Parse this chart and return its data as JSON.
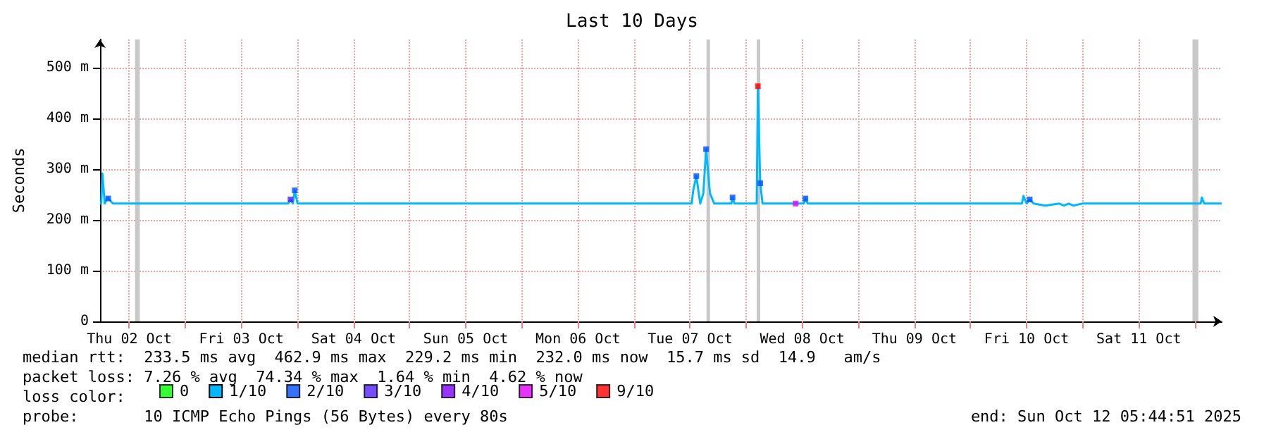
{
  "chart_data": {
    "type": "line",
    "title": "Last 10 Days",
    "ylabel": "Seconds",
    "legend_title": "loss color:",
    "xlim": [
      "2025-10-02T05:44:51",
      "2025-10-12T05:44:51"
    ],
    "ylim": [
      0,
      555
    ],
    "yticks": [
      0,
      {
        "value": 100,
        "label": "100 m"
      },
      {
        "value": 200,
        "label": "200 m"
      },
      {
        "value": 300,
        "label": "300 m"
      },
      {
        "value": 400,
        "label": "400 m"
      },
      {
        "value": 500,
        "label": "500 m"
      }
    ],
    "xticks": [
      {
        "value": "2025-10-02T12:00",
        "label": "Thu 02 Oct"
      },
      {
        "value": "2025-10-03T00:00",
        "label": null
      },
      {
        "value": "2025-10-03T12:00",
        "label": "Fri 03 Oct"
      },
      {
        "value": "2025-10-04T00:00",
        "label": null
      },
      {
        "value": "2025-10-04T12:00",
        "label": "Sat 04 Oct"
      },
      {
        "value": "2025-10-05T00:00",
        "label": null
      },
      {
        "value": "2025-10-05T12:00",
        "label": "Sun 05 Oct"
      },
      {
        "value": "2025-10-06T00:00",
        "label": null
      },
      {
        "value": "2025-10-06T12:00",
        "label": "Mon 06 Oct"
      },
      {
        "value": "2025-10-07T00:00",
        "label": null
      },
      {
        "value": "2025-10-07T12:00",
        "label": "Tue 07 Oct"
      },
      {
        "value": "2025-10-08T00:00",
        "label": null
      },
      {
        "value": "2025-10-08T12:00",
        "label": "Wed 08 Oct"
      },
      {
        "value": "2025-10-09T00:00",
        "label": null
      },
      {
        "value": "2025-10-09T12:00",
        "label": "Thu 09 Oct"
      },
      {
        "value": "2025-10-10T00:00",
        "label": null
      },
      {
        "value": "2025-10-10T12:00",
        "label": "Fri 10 Oct"
      },
      {
        "value": "2025-10-11T00:00",
        "label": null
      },
      {
        "value": "2025-10-11T12:00",
        "label": "Sat 11 Oct"
      },
      {
        "value": "2025-10-12T00:00",
        "label": null
      }
    ],
    "grid": true,
    "legend": "bottom left",
    "marker": "none",
    "line_style": "solid",
    "series": [
      {
        "name": "0",
        "type": "scatter",
        "marker": "square",
        "color": "#00ff00"
      },
      {
        "name": "1/10",
        "color": "#00b8ff",
        "x": [
          "2025-10-02T05:45",
          "2025-10-02T06:00",
          "2025-10-02T06:15",
          "2025-10-02T06:45",
          "2025-10-02T07:15",
          "2025-10-02T07:30",
          "2025-10-02T08:30",
          "2025-10-03T22:00",
          "2025-10-03T22:30",
          "2025-10-03T23:00",
          "2025-10-03T23:25",
          "2025-10-04T00:00",
          "2025-10-07T12:20",
          "2025-10-07T12:40",
          "2025-10-07T13:20",
          "2025-10-07T14:10",
          "2025-10-07T14:50",
          "2025-10-07T15:25",
          "2025-10-07T16:15",
          "2025-10-07T17:10",
          "2025-10-07T20:50",
          "2025-10-07T21:05",
          "2025-10-07T21:30",
          "2025-10-08T02:15",
          "2025-10-08T02:30",
          "2025-10-08T03:00",
          "2025-10-08T03:30",
          "2025-10-08T12:20",
          "2025-10-08T12:40",
          "2025-10-08T13:10",
          "2025-10-10T11:00",
          "2025-10-10T11:20",
          "2025-10-10T12:00",
          "2025-10-10T12:40",
          "2025-10-10T13:30",
          "2025-10-10T16:00",
          "2025-10-10T19:00",
          "2025-10-10T20:00",
          "2025-10-10T21:00",
          "2025-10-10T22:00",
          "2025-10-11T00:00",
          "2025-10-12T01:15",
          "2025-10-12T01:30",
          "2025-10-12T02:00",
          "2025-10-12T05:44"
        ],
        "values": [
          232,
          232,
          291,
          232,
          242,
          242,
          232,
          232,
          240,
          232,
          258,
          232,
          232,
          258,
          286,
          232,
          252,
          339,
          252,
          232,
          232,
          244,
          232,
          232,
          463,
          272,
          232,
          232,
          242,
          232,
          232,
          247,
          232,
          240,
          232,
          228,
          232,
          228,
          232,
          228,
          232,
          232,
          244,
          232,
          232
        ]
      },
      {
        "name": "2/10",
        "type": "scatter",
        "marker": "square",
        "color": "#0050ff",
        "x": [
          "2025-10-02T07:30",
          "2025-10-03T23:25",
          "2025-10-07T13:20",
          "2025-10-07T15:25",
          "2025-10-07T21:05",
          "2025-10-08T03:00",
          "2025-10-08T12:40",
          "2025-10-10T12:40"
        ],
        "values": [
          242,
          258,
          286,
          339,
          244,
          272,
          242,
          240
        ]
      },
      {
        "name": "3/10",
        "type": "scatter",
        "marker": "square",
        "color": "#5020ff",
        "x": [
          "2025-10-03T22:30"
        ],
        "values": [
          240
        ]
      },
      {
        "name": "4/10",
        "type": "scatter",
        "marker": "square",
        "color": "#8000ff"
      },
      {
        "name": "5/10",
        "type": "scatter",
        "marker": "square",
        "color": "#e000ff",
        "x": [
          "2025-10-08T10:35"
        ],
        "values": [
          232
        ]
      },
      {
        "name": "9/10",
        "type": "scatter",
        "marker": "square",
        "color": "#ff0000",
        "x": [
          "2025-10-08T02:30"
        ],
        "values": [
          463
        ]
      }
    ],
    "bands": [
      {
        "axis": "x",
        "from": "2025-10-02T13:15",
        "to": "2025-10-02T14:15",
        "color": "#c8c8c8"
      },
      {
        "axis": "x",
        "from": "2025-10-07T15:30",
        "to": "2025-10-07T16:15",
        "color": "#c8c8c8"
      },
      {
        "axis": "x",
        "from": "2025-10-08T02:15",
        "to": "2025-10-08T03:00",
        "color": "#c8c8c8"
      },
      {
        "axis": "x",
        "from": "2025-10-11T23:30",
        "to": "2025-10-12T00:45",
        "color": "#c8c8c8"
      }
    ],
    "annotations": [
      "median rtt:  233.5 ms avg  462.9 ms max  229.2 ms min  232.0 ms now  15.7 ms sd  14.9   am/s",
      "packet loss: 7.26 % avg  74.34 % max  1.64 % min  4.62 % now",
      "probe:       10 ICMP Echo Pings (56 Bytes) every 80s",
      "end: Sun Oct 12 05:44:51 2025"
    ]
  }
}
